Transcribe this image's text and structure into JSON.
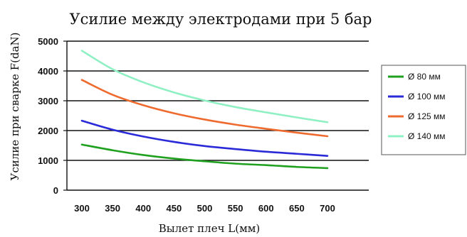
{
  "chart_data": {
    "type": "line",
    "title": "Усилие между электродами при 5 бар",
    "xlabel": "Вылет плеч L(мм)",
    "ylabel": "Усилие при сварке F(daN)",
    "xlim": [
      300,
      700
    ],
    "ylim": [
      0,
      5000
    ],
    "xticks": [
      "300",
      "350",
      "400",
      "450",
      "500",
      "550",
      "600",
      "650",
      "700"
    ],
    "yticks": [
      "0",
      "1000",
      "2000",
      "3000",
      "4000",
      "5000"
    ],
    "grid": true,
    "legend_position": "right",
    "x": [
      300,
      350,
      400,
      450,
      500,
      550,
      600,
      650,
      700
    ],
    "series": [
      {
        "name": "Ø 80 мм",
        "color": "#1fa01f",
        "values": [
          1530,
          1340,
          1180,
          1060,
          970,
          890,
          840,
          780,
          740
        ]
      },
      {
        "name": "Ø 100 мм",
        "color": "#2a2ad8",
        "values": [
          2330,
          2030,
          1800,
          1620,
          1480,
          1380,
          1290,
          1220,
          1150
        ]
      },
      {
        "name": "Ø 125 мм",
        "color": "#ee6a2e",
        "values": [
          3700,
          3200,
          2850,
          2580,
          2370,
          2200,
          2060,
          1930,
          1810
        ]
      },
      {
        "name": "Ø 140 мм",
        "color": "#8ff0c4",
        "values": [
          4680,
          4060,
          3620,
          3280,
          3010,
          2790,
          2610,
          2440,
          2280
        ]
      }
    ]
  }
}
